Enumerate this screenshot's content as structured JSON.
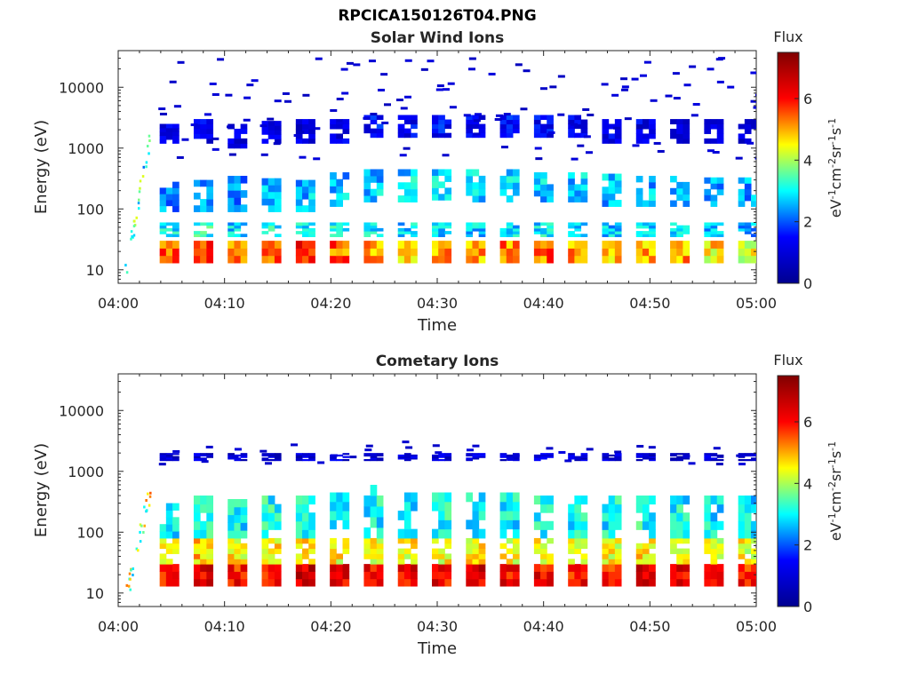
{
  "figure": {
    "title": "RPCICA150126T04.PNG"
  },
  "chart_data": [
    {
      "type": "heatmap",
      "title": "Solar Wind Ions",
      "xlabel": "Time",
      "ylabel": "Energy (eV)",
      "x_ticks": [
        "04:00",
        "04:10",
        "04:20",
        "04:30",
        "04:40",
        "04:50",
        "05:00"
      ],
      "xlim": [
        "04:00",
        "05:00"
      ],
      "y_scale": "log",
      "y_ticks": [
        10,
        100,
        1000,
        10000
      ],
      "y_tick_labels": [
        "10",
        "100",
        "1000",
        "10000"
      ],
      "ylim": [
        6,
        40000
      ],
      "colorbar": {
        "title": "Flux",
        "label": "eV-1cm-2sr-1s-1",
        "ticks": [
          0,
          2,
          4,
          6
        ],
        "range": [
          0,
          7.5
        ],
        "colormap": [
          "#00008f",
          "#0000ff",
          "#00ffff",
          "#ffff00",
          "#ff0000",
          "#800000"
        ]
      },
      "sweep_period_min": 3.2,
      "sweeps": [
        {
          "t": 4.8,
          "bands": [
            {
              "e_lo": 13,
              "e_hi": 30,
              "v": 5.5
            },
            {
              "e_lo": 35,
              "e_hi": 60,
              "v": 3.0
            },
            {
              "e_lo": 90,
              "e_hi": 280,
              "v": 2.4
            },
            {
              "e_lo": 1200,
              "e_hi": 2500,
              "v": 1.0
            }
          ]
        },
        {
          "t": 8.0,
          "bands": [
            {
              "e_lo": 13,
              "e_hi": 30,
              "v": 5.8
            },
            {
              "e_lo": 35,
              "e_hi": 60,
              "v": 3.2
            },
            {
              "e_lo": 90,
              "e_hi": 300,
              "v": 2.5
            },
            {
              "e_lo": 1200,
              "e_hi": 3000,
              "v": 1.1
            }
          ]
        },
        {
          "t": 11.2,
          "bands": [
            {
              "e_lo": 13,
              "e_hi": 30,
              "v": 5.2
            },
            {
              "e_lo": 35,
              "e_hi": 60,
              "v": 2.8
            },
            {
              "e_lo": 90,
              "e_hi": 350,
              "v": 2.3
            },
            {
              "e_lo": 1000,
              "e_hi": 2500,
              "v": 1.0
            }
          ]
        },
        {
          "t": 14.4,
          "bands": [
            {
              "e_lo": 13,
              "e_hi": 30,
              "v": 5.6
            },
            {
              "e_lo": 35,
              "e_hi": 60,
              "v": 3.1
            },
            {
              "e_lo": 90,
              "e_hi": 320,
              "v": 2.5
            },
            {
              "e_lo": 1200,
              "e_hi": 2800,
              "v": 1.1
            }
          ]
        },
        {
          "t": 17.6,
          "bands": [
            {
              "e_lo": 13,
              "e_hi": 30,
              "v": 6.0
            },
            {
              "e_lo": 35,
              "e_hi": 60,
              "v": 3.0
            },
            {
              "e_lo": 90,
              "e_hi": 300,
              "v": 2.6
            },
            {
              "e_lo": 1200,
              "e_hi": 3000,
              "v": 1.0
            }
          ]
        },
        {
          "t": 20.8,
          "bands": [
            {
              "e_lo": 13,
              "e_hi": 30,
              "v": 5.4
            },
            {
              "e_lo": 35,
              "e_hi": 60,
              "v": 3.0
            },
            {
              "e_lo": 110,
              "e_hi": 400,
              "v": 2.6
            },
            {
              "e_lo": 1200,
              "e_hi": 3000,
              "v": 1.2
            }
          ]
        },
        {
          "t": 24.0,
          "bands": [
            {
              "e_lo": 13,
              "e_hi": 30,
              "v": 5.2
            },
            {
              "e_lo": 35,
              "e_hi": 60,
              "v": 2.9
            },
            {
              "e_lo": 130,
              "e_hi": 450,
              "v": 2.7
            },
            {
              "e_lo": 1500,
              "e_hi": 3500,
              "v": 1.4
            }
          ]
        },
        {
          "t": 27.2,
          "bands": [
            {
              "e_lo": 13,
              "e_hi": 30,
              "v": 5.0
            },
            {
              "e_lo": 35,
              "e_hi": 60,
              "v": 2.8
            },
            {
              "e_lo": 130,
              "e_hi": 450,
              "v": 2.8
            },
            {
              "e_lo": 1500,
              "e_hi": 3500,
              "v": 1.3
            }
          ]
        },
        {
          "t": 30.4,
          "bands": [
            {
              "e_lo": 13,
              "e_hi": 30,
              "v": 5.1
            },
            {
              "e_lo": 35,
              "e_hi": 60,
              "v": 2.8
            },
            {
              "e_lo": 140,
              "e_hi": 450,
              "v": 2.9
            },
            {
              "e_lo": 1500,
              "e_hi": 3500,
              "v": 1.4
            }
          ]
        },
        {
          "t": 33.6,
          "bands": [
            {
              "e_lo": 13,
              "e_hi": 30,
              "v": 5.0
            },
            {
              "e_lo": 35,
              "e_hi": 60,
              "v": 2.7
            },
            {
              "e_lo": 130,
              "e_hi": 450,
              "v": 2.8
            },
            {
              "e_lo": 1500,
              "e_hi": 3500,
              "v": 1.3
            }
          ]
        },
        {
          "t": 36.8,
          "bands": [
            {
              "e_lo": 13,
              "e_hi": 30,
              "v": 5.2
            },
            {
              "e_lo": 35,
              "e_hi": 60,
              "v": 2.8
            },
            {
              "e_lo": 130,
              "e_hi": 450,
              "v": 2.8
            },
            {
              "e_lo": 1500,
              "e_hi": 3500,
              "v": 1.4
            }
          ]
        },
        {
          "t": 40.0,
          "bands": [
            {
              "e_lo": 13,
              "e_hi": 30,
              "v": 5.4
            },
            {
              "e_lo": 35,
              "e_hi": 60,
              "v": 2.9
            },
            {
              "e_lo": 130,
              "e_hi": 400,
              "v": 2.7
            },
            {
              "e_lo": 1500,
              "e_hi": 3500,
              "v": 1.3
            }
          ]
        },
        {
          "t": 43.2,
          "bands": [
            {
              "e_lo": 13,
              "e_hi": 30,
              "v": 5.2
            },
            {
              "e_lo": 35,
              "e_hi": 60,
              "v": 2.8
            },
            {
              "e_lo": 130,
              "e_hi": 400,
              "v": 2.7
            },
            {
              "e_lo": 1500,
              "e_hi": 3500,
              "v": 1.2
            }
          ]
        },
        {
          "t": 46.4,
          "bands": [
            {
              "e_lo": 13,
              "e_hi": 30,
              "v": 4.8
            },
            {
              "e_lo": 35,
              "e_hi": 60,
              "v": 2.7
            },
            {
              "e_lo": 110,
              "e_hi": 380,
              "v": 2.6
            },
            {
              "e_lo": 1200,
              "e_hi": 3000,
              "v": 1.1
            }
          ]
        },
        {
          "t": 49.6,
          "bands": [
            {
              "e_lo": 13,
              "e_hi": 30,
              "v": 5.0
            },
            {
              "e_lo": 35,
              "e_hi": 60,
              "v": 2.7
            },
            {
              "e_lo": 110,
              "e_hi": 350,
              "v": 2.6
            },
            {
              "e_lo": 1200,
              "e_hi": 3000,
              "v": 1.1
            }
          ]
        },
        {
          "t": 52.8,
          "bands": [
            {
              "e_lo": 13,
              "e_hi": 30,
              "v": 5.0
            },
            {
              "e_lo": 35,
              "e_hi": 60,
              "v": 2.8
            },
            {
              "e_lo": 110,
              "e_hi": 350,
              "v": 2.5
            },
            {
              "e_lo": 1200,
              "e_hi": 3000,
              "v": 1.0
            }
          ]
        },
        {
          "t": 56.0,
          "bands": [
            {
              "e_lo": 13,
              "e_hi": 30,
              "v": 4.6
            },
            {
              "e_lo": 35,
              "e_hi": 60,
              "v": 2.6
            },
            {
              "e_lo": 110,
              "e_hi": 330,
              "v": 2.4
            },
            {
              "e_lo": 1200,
              "e_hi": 3000,
              "v": 1.0
            }
          ]
        },
        {
          "t": 59.2,
          "bands": [
            {
              "e_lo": 13,
              "e_hi": 30,
              "v": 4.4
            },
            {
              "e_lo": 35,
              "e_hi": 60,
              "v": 2.5
            },
            {
              "e_lo": 110,
              "e_hi": 330,
              "v": 2.4
            },
            {
              "e_lo": 1200,
              "e_hi": 3000,
              "v": 1.0
            }
          ]
        }
      ]
    },
    {
      "type": "heatmap",
      "title": "Cometary Ions",
      "xlabel": "Time",
      "ylabel": "Energy (eV)",
      "x_ticks": [
        "04:00",
        "04:10",
        "04:20",
        "04:30",
        "04:40",
        "04:50",
        "05:00"
      ],
      "xlim": [
        "04:00",
        "05:00"
      ],
      "y_scale": "log",
      "y_ticks": [
        10,
        100,
        1000,
        10000
      ],
      "y_tick_labels": [
        "10",
        "100",
        "1000",
        "10000"
      ],
      "ylim": [
        6,
        40000
      ],
      "colorbar": {
        "title": "Flux",
        "label": "eV-1cm-2sr-1s-1",
        "ticks": [
          0,
          2,
          4,
          6
        ],
        "range": [
          0,
          7.5
        ],
        "colormap": [
          "#00008f",
          "#0000ff",
          "#00ffff",
          "#ffff00",
          "#ff0000",
          "#800000"
        ]
      },
      "sweep_period_min": 3.2,
      "sweeps": [
        {
          "t": 4.8,
          "bands": [
            {
              "e_lo": 13,
              "e_hi": 30,
              "v": 6.0
            },
            {
              "e_lo": 30,
              "e_hi": 80,
              "v": 4.6
            },
            {
              "e_lo": 80,
              "e_hi": 300,
              "v": 3.0
            },
            {
              "e_lo": 1500,
              "e_hi": 2000,
              "v": 0.9
            }
          ]
        },
        {
          "t": 8.0,
          "bands": [
            {
              "e_lo": 13,
              "e_hi": 30,
              "v": 6.4
            },
            {
              "e_lo": 30,
              "e_hi": 80,
              "v": 4.8
            },
            {
              "e_lo": 80,
              "e_hi": 400,
              "v": 3.2
            },
            {
              "e_lo": 1500,
              "e_hi": 2000,
              "v": 0.9
            }
          ]
        },
        {
          "t": 11.2,
          "bands": [
            {
              "e_lo": 13,
              "e_hi": 30,
              "v": 6.0
            },
            {
              "e_lo": 30,
              "e_hi": 80,
              "v": 4.5
            },
            {
              "e_lo": 80,
              "e_hi": 350,
              "v": 3.0
            },
            {
              "e_lo": 1500,
              "e_hi": 2000,
              "v": 0.9
            }
          ]
        },
        {
          "t": 14.4,
          "bands": [
            {
              "e_lo": 13,
              "e_hi": 30,
              "v": 6.2
            },
            {
              "e_lo": 30,
              "e_hi": 80,
              "v": 4.6
            },
            {
              "e_lo": 80,
              "e_hi": 400,
              "v": 3.1
            },
            {
              "e_lo": 1500,
              "e_hi": 2000,
              "v": 0.9
            }
          ]
        },
        {
          "t": 17.6,
          "bands": [
            {
              "e_lo": 13,
              "e_hi": 30,
              "v": 6.6
            },
            {
              "e_lo": 30,
              "e_hi": 80,
              "v": 4.8
            },
            {
              "e_lo": 80,
              "e_hi": 400,
              "v": 3.2
            },
            {
              "e_lo": 1500,
              "e_hi": 2000,
              "v": 0.9
            }
          ]
        },
        {
          "t": 20.8,
          "bands": [
            {
              "e_lo": 13,
              "e_hi": 30,
              "v": 6.2
            },
            {
              "e_lo": 30,
              "e_hi": 80,
              "v": 4.5
            },
            {
              "e_lo": 80,
              "e_hi": 450,
              "v": 3.1
            },
            {
              "e_lo": 1500,
              "e_hi": 2000,
              "v": 1.0
            }
          ]
        },
        {
          "t": 24.0,
          "bands": [
            {
              "e_lo": 13,
              "e_hi": 30,
              "v": 6.0
            },
            {
              "e_lo": 30,
              "e_hi": 80,
              "v": 4.4
            },
            {
              "e_lo": 80,
              "e_hi": 600,
              "v": 3.0
            },
            {
              "e_lo": 1500,
              "e_hi": 2000,
              "v": 1.0
            }
          ]
        },
        {
          "t": 27.2,
          "bands": [
            {
              "e_lo": 13,
              "e_hi": 30,
              "v": 6.2
            },
            {
              "e_lo": 30,
              "e_hi": 80,
              "v": 4.5
            },
            {
              "e_lo": 80,
              "e_hi": 450,
              "v": 3.0
            },
            {
              "e_lo": 1500,
              "e_hi": 2000,
              "v": 1.0
            }
          ]
        },
        {
          "t": 30.4,
          "bands": [
            {
              "e_lo": 13,
              "e_hi": 30,
              "v": 6.2
            },
            {
              "e_lo": 30,
              "e_hi": 80,
              "v": 4.5
            },
            {
              "e_lo": 80,
              "e_hi": 450,
              "v": 3.1
            },
            {
              "e_lo": 1500,
              "e_hi": 2000,
              "v": 1.0
            }
          ]
        },
        {
          "t": 33.6,
          "bands": [
            {
              "e_lo": 13,
              "e_hi": 30,
              "v": 6.4
            },
            {
              "e_lo": 30,
              "e_hi": 80,
              "v": 4.6
            },
            {
              "e_lo": 80,
              "e_hi": 450,
              "v": 3.1
            },
            {
              "e_lo": 1500,
              "e_hi": 2000,
              "v": 1.0
            }
          ]
        },
        {
          "t": 36.8,
          "bands": [
            {
              "e_lo": 13,
              "e_hi": 30,
              "v": 6.2
            },
            {
              "e_lo": 30,
              "e_hi": 80,
              "v": 4.5
            },
            {
              "e_lo": 80,
              "e_hi": 450,
              "v": 3.0
            },
            {
              "e_lo": 1500,
              "e_hi": 2000,
              "v": 1.0
            }
          ]
        },
        {
          "t": 40.0,
          "bands": [
            {
              "e_lo": 13,
              "e_hi": 30,
              "v": 6.2
            },
            {
              "e_lo": 30,
              "e_hi": 80,
              "v": 4.6
            },
            {
              "e_lo": 80,
              "e_hi": 400,
              "v": 3.1
            },
            {
              "e_lo": 1500,
              "e_hi": 2000,
              "v": 1.0
            }
          ]
        },
        {
          "t": 43.2,
          "bands": [
            {
              "e_lo": 13,
              "e_hi": 30,
              "v": 6.0
            },
            {
              "e_lo": 30,
              "e_hi": 80,
              "v": 4.4
            },
            {
              "e_lo": 80,
              "e_hi": 400,
              "v": 3.0
            },
            {
              "e_lo": 1500,
              "e_hi": 2000,
              "v": 0.9
            }
          ]
        },
        {
          "t": 46.4,
          "bands": [
            {
              "e_lo": 13,
              "e_hi": 30,
              "v": 6.0
            },
            {
              "e_lo": 30,
              "e_hi": 80,
              "v": 4.4
            },
            {
              "e_lo": 80,
              "e_hi": 400,
              "v": 3.0
            },
            {
              "e_lo": 1500,
              "e_hi": 2000,
              "v": 0.9
            }
          ]
        },
        {
          "t": 49.6,
          "bands": [
            {
              "e_lo": 13,
              "e_hi": 30,
              "v": 6.4
            },
            {
              "e_lo": 30,
              "e_hi": 80,
              "v": 4.6
            },
            {
              "e_lo": 80,
              "e_hi": 400,
              "v": 3.1
            },
            {
              "e_lo": 1500,
              "e_hi": 2000,
              "v": 0.9
            }
          ]
        },
        {
          "t": 52.8,
          "bands": [
            {
              "e_lo": 13,
              "e_hi": 30,
              "v": 6.2
            },
            {
              "e_lo": 30,
              "e_hi": 80,
              "v": 4.5
            },
            {
              "e_lo": 80,
              "e_hi": 400,
              "v": 3.0
            },
            {
              "e_lo": 1500,
              "e_hi": 2000,
              "v": 0.9
            }
          ]
        },
        {
          "t": 56.0,
          "bands": [
            {
              "e_lo": 13,
              "e_hi": 30,
              "v": 6.0
            },
            {
              "e_lo": 30,
              "e_hi": 80,
              "v": 4.4
            },
            {
              "e_lo": 80,
              "e_hi": 400,
              "v": 2.9
            },
            {
              "e_lo": 1500,
              "e_hi": 2000,
              "v": 0.9
            }
          ]
        },
        {
          "t": 59.2,
          "bands": [
            {
              "e_lo": 13,
              "e_hi": 30,
              "v": 6.0
            },
            {
              "e_lo": 30,
              "e_hi": 80,
              "v": 4.4
            },
            {
              "e_lo": 80,
              "e_hi": 400,
              "v": 2.9
            },
            {
              "e_lo": 1500,
              "e_hi": 2000,
              "v": 0.9
            }
          ]
        }
      ]
    }
  ]
}
